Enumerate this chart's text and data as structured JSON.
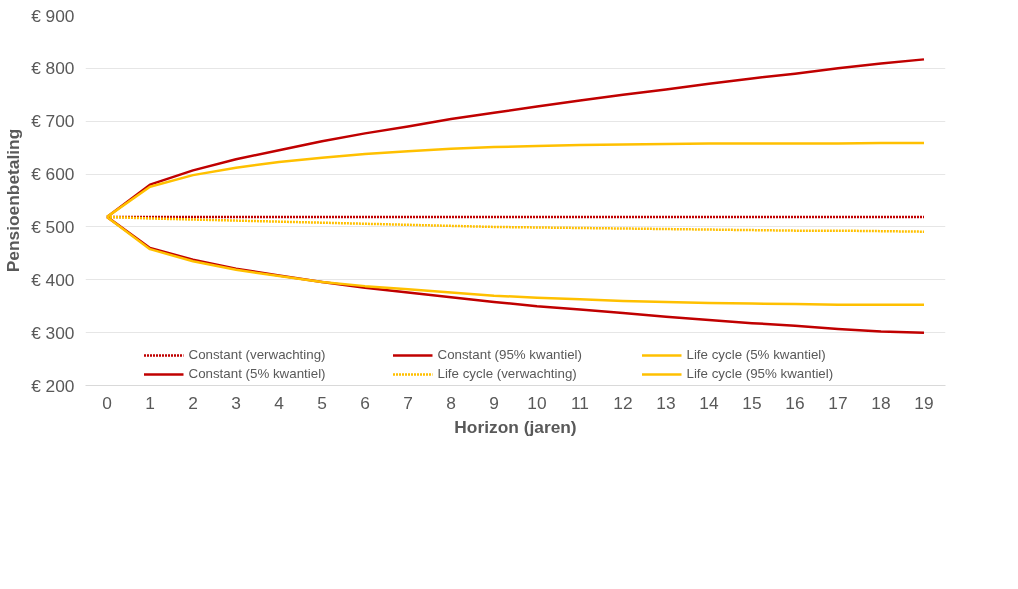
{
  "chart_data": {
    "type": "line",
    "xlabel": "Horizon (jaren)",
    "ylabel": "Pensioenbetaling",
    "x": [
      0,
      1,
      2,
      3,
      4,
      5,
      6,
      7,
      8,
      9,
      10,
      11,
      12,
      13,
      14,
      15,
      16,
      17,
      18,
      19
    ],
    "xlim": [
      -0.5,
      19.5
    ],
    "xticks": [
      0,
      1,
      2,
      3,
      4,
      5,
      6,
      7,
      8,
      9,
      10,
      11,
      12,
      13,
      14,
      15,
      16,
      17,
      18,
      19
    ],
    "ylim": [
      200,
      900
    ],
    "yticks": [
      {
        "value": 200,
        "label": "€ 200"
      },
      {
        "value": 300,
        "label": "€ 300"
      },
      {
        "value": 400,
        "label": "€ 400"
      },
      {
        "value": 500,
        "label": "€ 500"
      },
      {
        "value": 600,
        "label": "€ 600"
      },
      {
        "value": 700,
        "label": "€ 700"
      },
      {
        "value": 800,
        "label": "€ 800"
      },
      {
        "value": 900,
        "label": "€ 900"
      }
    ],
    "grid": "y",
    "legend": "bottom",
    "marker": "none",
    "series": [
      {
        "name": "Constant (verwachting)",
        "color": "#c00000",
        "line_style": "dotted",
        "values": [
          519,
          519,
          519,
          519,
          519,
          519,
          519,
          519,
          519,
          519,
          519,
          519,
          519,
          519,
          519,
          519,
          519,
          519,
          519,
          519
        ]
      },
      {
        "name": "Constant (5% kwantiel)",
        "color": "#c00000",
        "line_style": "solid",
        "values": [
          519,
          460,
          438,
          421,
          408,
          396,
          385,
          376,
          367,
          358,
          350,
          344,
          337,
          330,
          324,
          318,
          313,
          307,
          302,
          300
        ]
      },
      {
        "name": "Constant (95% kwantiel)",
        "color": "#c00000",
        "line_style": "solid",
        "values": [
          519,
          580,
          607,
          628,
          645,
          662,
          677,
          690,
          704,
          716,
          728,
          739,
          750,
          760,
          771,
          781,
          790,
          800,
          809,
          817
        ]
      },
      {
        "name": "Life cycle (verwachting)",
        "color": "#ffc000",
        "line_style": "dotted",
        "values": [
          519,
          516,
          514,
          512,
          510,
          508,
          506,
          504,
          502,
          500,
          499,
          498,
          497,
          496,
          495,
          494,
          493,
          493,
          492,
          491
        ]
      },
      {
        "name": "Life cycle (5% kwantiel)",
        "color": "#ffc000",
        "line_style": "solid",
        "values": [
          519,
          458,
          435,
          419,
          407,
          396,
          388,
          382,
          376,
          370,
          366,
          363,
          360,
          358,
          356,
          355,
          354,
          353,
          353,
          353
        ]
      },
      {
        "name": "Life cycle (95% kwantiel)",
        "color": "#ffc000",
        "line_style": "solid",
        "values": [
          519,
          576,
          598,
          612,
          623,
          631,
          638,
          643,
          648,
          651,
          653,
          655,
          656,
          657,
          658,
          658,
          658,
          658,
          659,
          659
        ]
      }
    ]
  }
}
